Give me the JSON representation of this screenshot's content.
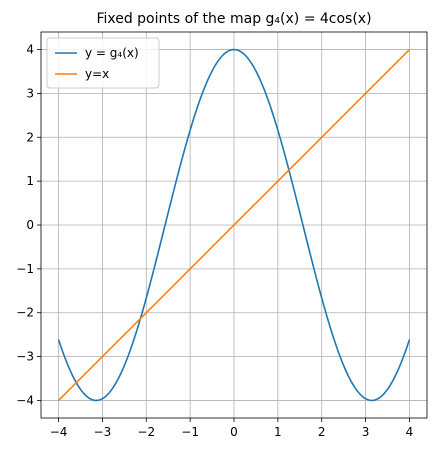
{
  "chart_data": {
    "type": "line",
    "title": "Fixed points of the map g₄(x) = 4cos(x)",
    "xlabel": "",
    "ylabel": "",
    "xlim": [
      -4.4,
      4.4
    ],
    "ylim": [
      -4.4,
      4.4
    ],
    "xticks": [
      -4,
      -3,
      -2,
      -1,
      0,
      1,
      2,
      3,
      4
    ],
    "yticks": [
      -4,
      -3,
      -2,
      -1,
      0,
      1,
      2,
      3,
      4
    ],
    "tick_labels_x": [
      "−4",
      "−3",
      "−2",
      "−1",
      "0",
      "1",
      "2",
      "3",
      "4"
    ],
    "tick_labels_y": [
      "−4",
      "−3",
      "−2",
      "−1",
      "0",
      "1",
      "2",
      "3",
      "4"
    ],
    "grid": true,
    "legend_position": "top-left",
    "series": [
      {
        "name": "y = g₄(x)",
        "color": "#1f77b4",
        "x": [
          -4.0,
          -3.75,
          -3.5,
          -3.25,
          -3.0,
          -2.75,
          -2.5,
          -2.25,
          -2.0,
          -1.75,
          -1.5,
          -1.25,
          -1.0,
          -0.75,
          -0.5,
          -0.25,
          0.0,
          0.25,
          0.5,
          0.75,
          1.0,
          1.25,
          1.5,
          1.75,
          2.0,
          2.25,
          2.5,
          2.75,
          3.0,
          3.25,
          3.5,
          3.75,
          4.0
        ],
        "y": [
          -2.61,
          -3.28,
          -3.75,
          -3.98,
          -3.96,
          -3.7,
          -3.2,
          -2.51,
          -1.66,
          -0.71,
          0.28,
          1.26,
          2.16,
          2.93,
          3.51,
          3.88,
          4.0,
          3.88,
          3.51,
          2.93,
          2.16,
          1.26,
          0.28,
          -0.71,
          -1.66,
          -2.51,
          -3.2,
          -3.7,
          -3.96,
          -3.98,
          -3.75,
          -3.28,
          -2.61
        ]
      },
      {
        "name": "y=x",
        "color": "#ff7f0e",
        "x": [
          -4.0,
          4.0
        ],
        "y": [
          -4.0,
          4.0
        ]
      }
    ]
  }
}
